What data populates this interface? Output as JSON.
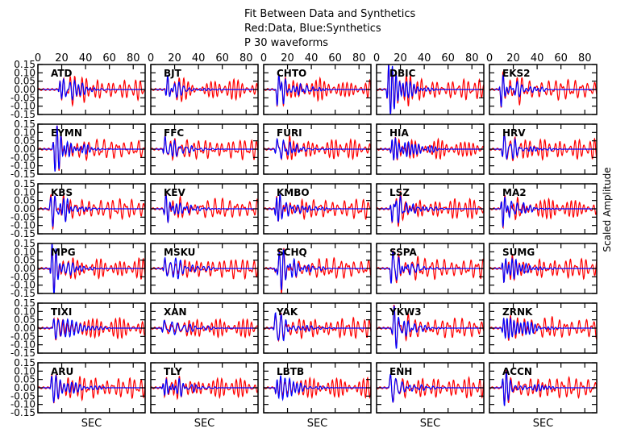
{
  "chart_data": {
    "type": "line",
    "title_lines": [
      "Fit Between Data and Synthetics",
      "Red:Data,   Blue:Synthetics",
      "P 30     waveforms"
    ],
    "xlabel": "SEC",
    "ylabel": "Scaled  Amplitude",
    "xlim": [
      0,
      90
    ],
    "ylim": [
      -0.15,
      0.15
    ],
    "x_ticks": [
      0,
      20,
      40,
      60,
      80
    ],
    "x_tick_labels": [
      "0",
      "20",
      "40",
      "60",
      "80"
    ],
    "y_ticks": [
      0.15,
      0.1,
      0.05,
      0.0,
      -0.05,
      -0.1,
      -0.15
    ],
    "y_tick_labels": [
      "0.15",
      "0.10",
      "0.05",
      "0.00",
      "-0.05",
      "-0.10",
      "-0.15"
    ],
    "grid": false,
    "layout": {
      "rows": 6,
      "cols": 5
    },
    "series_colors": {
      "data": "#ff0000",
      "synthetics": "#0000ff"
    },
    "legend": {
      "data": "Red:Data",
      "synthetics": "Blue:Synthetics"
    },
    "stations": [
      "ATD",
      "BJT",
      "CHTO",
      "DBIC",
      "EKS2",
      "EYMN",
      "FFC",
      "FURI",
      "HIA",
      "HRV",
      "KBS",
      "KEV",
      "KMBO",
      "LSZ",
      "MA2",
      "MPG",
      "MSKU",
      "SCHQ",
      "SSPA",
      "SUMG",
      "TIXI",
      "XAN",
      "YAK",
      "YKW3",
      "ZRNK",
      "ARU",
      "TLY",
      "LBTB",
      "ENH",
      "ACCN"
    ],
    "onset_sec": [
      17,
      12,
      10,
      8,
      8,
      12,
      10,
      9,
      11,
      10,
      8,
      10,
      9,
      11,
      9,
      10,
      10,
      9,
      11,
      10,
      12,
      9,
      8,
      12,
      10,
      10,
      9,
      9,
      10,
      10
    ]
  }
}
